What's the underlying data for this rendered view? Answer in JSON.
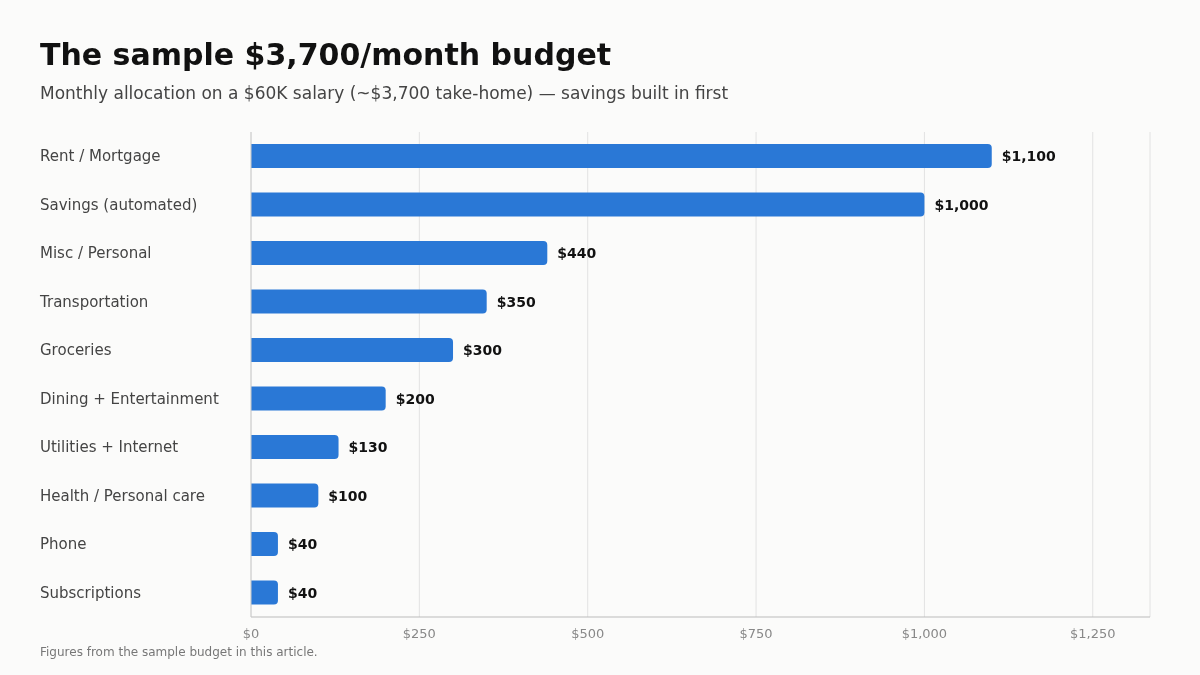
{
  "chart_data": {
    "type": "bar",
    "orientation": "horizontal",
    "title": "The sample $3,700/month budget",
    "subtitle": "Monthly allocation on a $60K salary (~$3,700 take-home) — savings built in first",
    "categories": [
      "Rent / Mortgage",
      "Savings (automated)",
      "Misc / Personal",
      "Transportation",
      "Groceries",
      "Dining + Entertainment",
      "Utilities + Internet",
      "Health / Personal care",
      "Phone",
      "Subscriptions"
    ],
    "values": [
      1100,
      1000,
      440,
      350,
      300,
      200,
      130,
      100,
      40,
      40
    ],
    "value_labels": [
      "$1,100",
      "$1,000",
      "$440",
      "$350",
      "$300",
      "$200",
      "$130",
      "$100",
      "$40",
      "$40"
    ],
    "color": "#2a78d6",
    "xlim": [
      0,
      1335
    ],
    "xticks": [
      {
        "value": 0,
        "label": "$0"
      },
      {
        "value": 250,
        "label": "$250"
      },
      {
        "value": 500,
        "label": "$500"
      },
      {
        "value": 750,
        "label": "$750"
      },
      {
        "value": 1000,
        "label": "$1,000"
      },
      {
        "value": 1250,
        "label": "$1,250"
      }
    ],
    "grid": "x",
    "annotations": [
      "Figures from the sample budget in this article."
    ]
  }
}
